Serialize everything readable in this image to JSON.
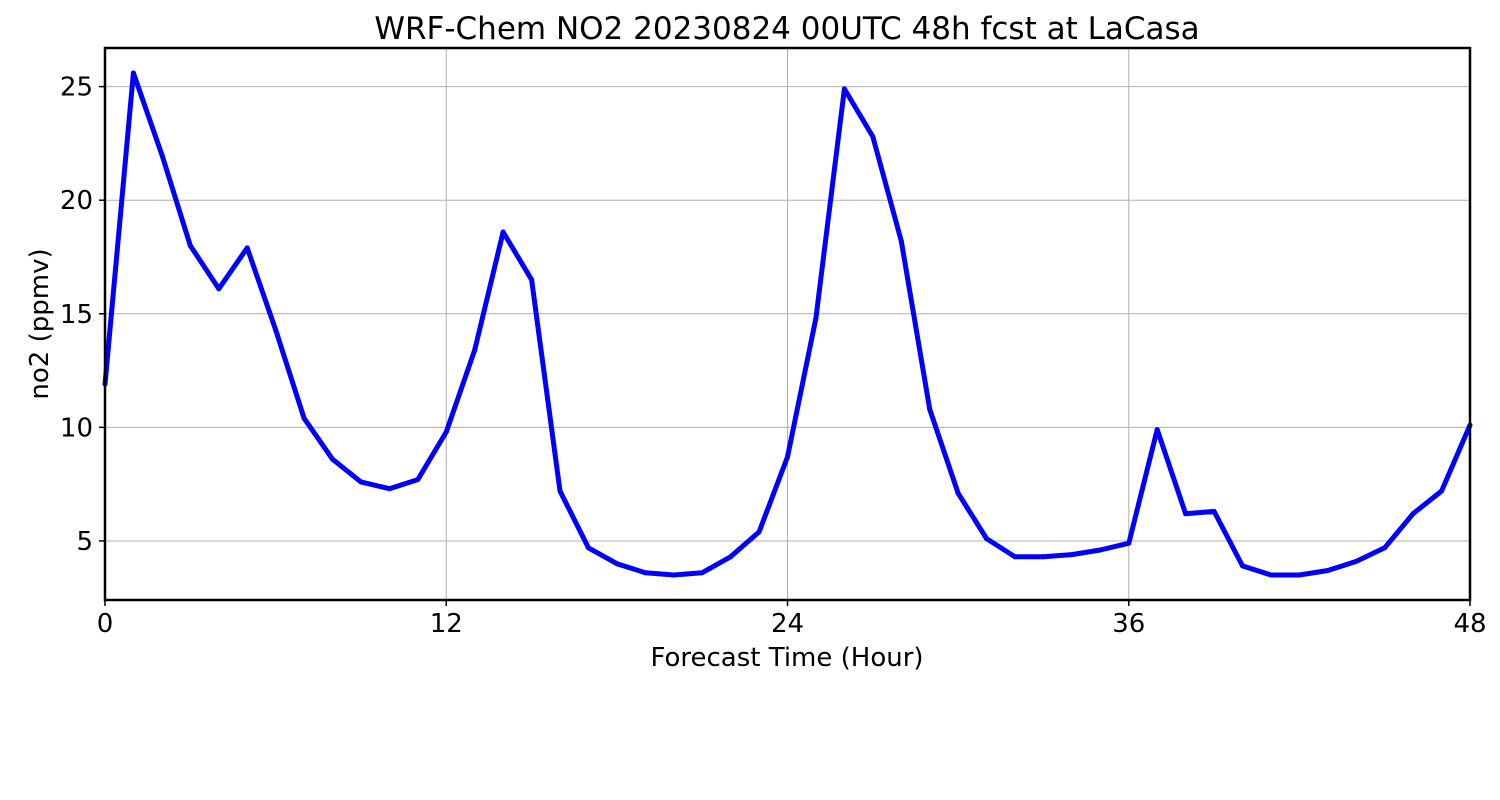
{
  "chart_data": {
    "type": "line",
    "title": "WRF-Chem NO2  20230824 00UTC 48h fcst at LaCasa",
    "xlabel": "Forecast Time (Hour)",
    "ylabel": "no2  (ppmv)",
    "xlim": [
      0,
      48
    ],
    "ylim": [
      2.4,
      26.7
    ],
    "xticks": [
      0,
      12,
      24,
      36,
      48
    ],
    "yticks": [
      5,
      10,
      15,
      20,
      25
    ],
    "grid": true,
    "line_color": "#0000ff",
    "series": [
      {
        "x": [
          0,
          1,
          2,
          3,
          4,
          5,
          6,
          7,
          8,
          9,
          10,
          11,
          12,
          13,
          14,
          15,
          16,
          17,
          18,
          19,
          20,
          21,
          22,
          23,
          24,
          25,
          26,
          27,
          28,
          29,
          30,
          31,
          32,
          33,
          34,
          35,
          36,
          37,
          38,
          39,
          40,
          41,
          42,
          43,
          44,
          45,
          46,
          47,
          48
        ],
        "values": [
          11.9,
          25.6,
          22.0,
          18.0,
          16.1,
          17.9,
          14.3,
          10.4,
          8.6,
          7.6,
          7.3,
          7.7,
          9.8,
          13.4,
          18.6,
          16.5,
          7.2,
          4.7,
          4.0,
          3.6,
          3.5,
          3.6,
          4.3,
          5.4,
          8.7,
          14.8,
          24.9,
          22.8,
          18.2,
          10.8,
          7.1,
          5.1,
          4.3,
          4.3,
          4.4,
          4.6,
          4.9,
          9.9,
          6.2,
          6.3,
          3.9,
          3.5,
          3.5,
          3.7,
          4.1,
          4.7,
          6.2,
          7.2,
          10.1
        ]
      }
    ]
  }
}
